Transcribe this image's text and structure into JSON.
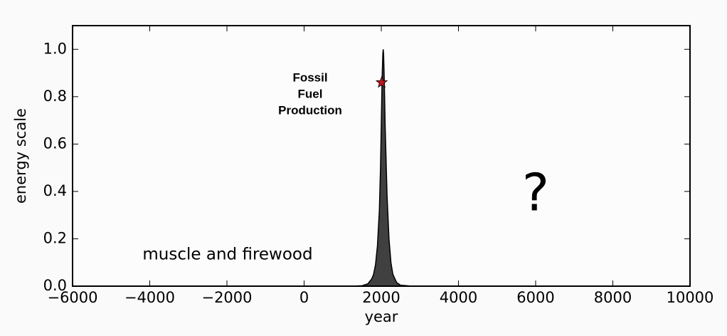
{
  "chart_data": {
    "type": "area",
    "xlabel": "year",
    "ylabel": "energy scale",
    "xlim": [
      -6000,
      10000
    ],
    "ylim": [
      0,
      1.1
    ],
    "xticks": [
      {
        "value": -6000,
        "label": "−6000"
      },
      {
        "value": -4000,
        "label": "−4000"
      },
      {
        "value": -2000,
        "label": "−2000"
      },
      0,
      2000,
      4000,
      6000,
      8000,
      10000
    ],
    "yticks": [
      {
        "value": 0,
        "label": "0.0"
      },
      0.2,
      0.4,
      0.6,
      0.8,
      {
        "value": 1.0,
        "label": "1.0"
      }
    ],
    "x": [
      1200,
      1500,
      1650,
      1750,
      1800,
      1850,
      1900,
      1950,
      1980,
      2000,
      2020,
      2040,
      2050,
      2060,
      2080,
      2100,
      2150,
      2200,
      2250,
      2300,
      2400,
      2500,
      2800
    ],
    "values": [
      0,
      0.002,
      0.01,
      0.03,
      0.05,
      0.09,
      0.17,
      0.32,
      0.5,
      0.68,
      0.87,
      0.98,
      1.0,
      0.98,
      0.85,
      0.68,
      0.38,
      0.2,
      0.1,
      0.05,
      0.015,
      0.004,
      0
    ],
    "color": "#404040",
    "marker": {
      "x": 2010,
      "y": 0.86,
      "color": "#c0141e"
    },
    "peak_label": [
      "Fossil",
      "Fuel",
      "Production"
    ],
    "annotations": [
      "muscle and firewood",
      "?"
    ]
  }
}
